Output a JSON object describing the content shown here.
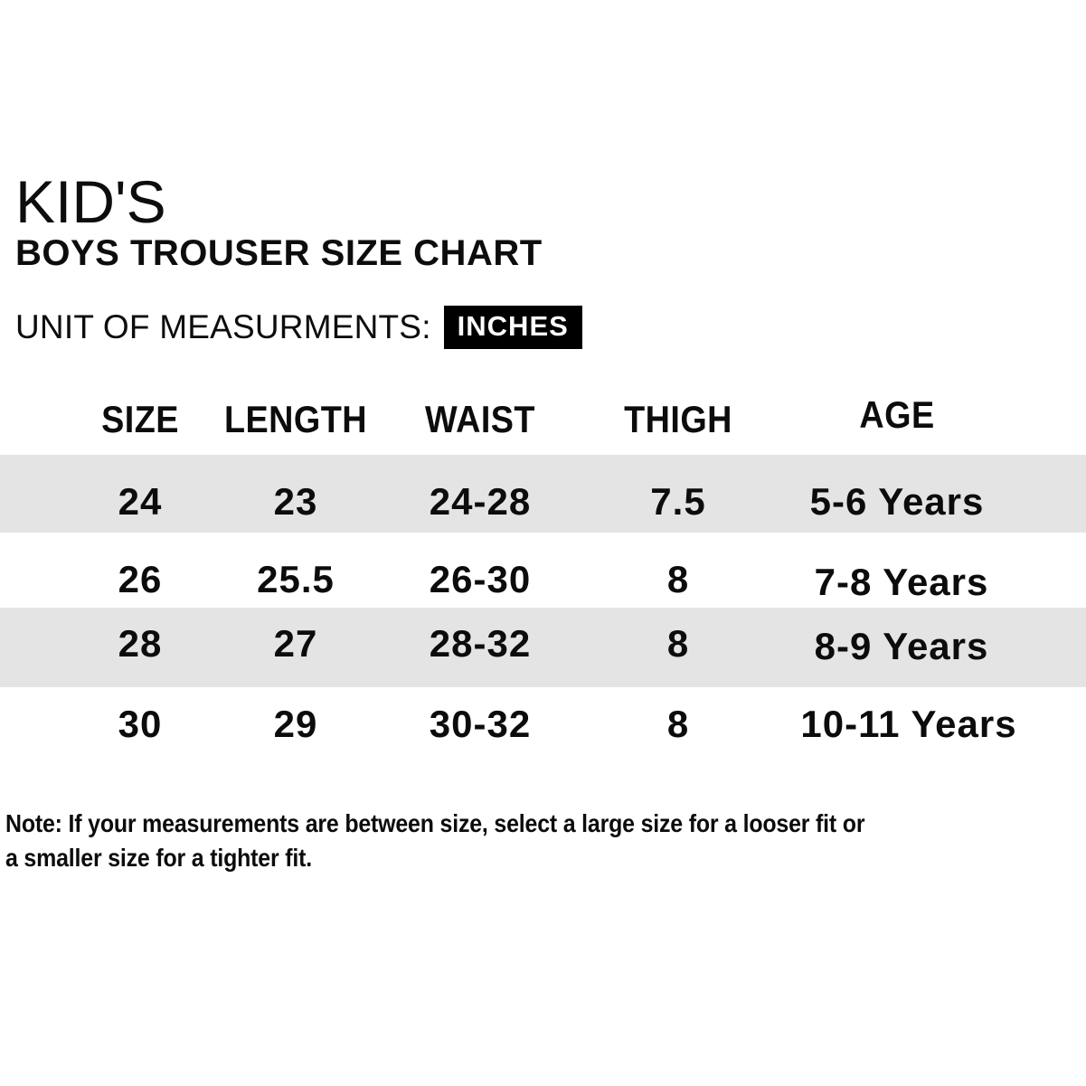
{
  "header": {
    "title_top": "KID'S",
    "title_main": "BOYS TROUSER SIZE CHART",
    "unit_label": "UNIT OF MEASURMENTS:",
    "unit_value": "INCHES"
  },
  "table": {
    "columns": [
      "SIZE",
      "LENGTH",
      "WAIST",
      "THIGH",
      "AGE"
    ],
    "rows": [
      [
        "24",
        "23",
        "24-28",
        "7.5",
        "5-6 Years"
      ],
      [
        "26",
        "25.5",
        "26-30",
        "8",
        "7-8 Years"
      ],
      [
        "28",
        "27",
        "28-32",
        "8",
        "8-9 Years"
      ],
      [
        "30",
        "29",
        "30-32",
        "8",
        "10-11 Years"
      ]
    ]
  },
  "note": {
    "line1": "Note: If your measurements are between size, select a large size for a looser fit or",
    "line2": "a smaller size for a tighter fit."
  },
  "colors": {
    "row_stripe": "#e4e4e4",
    "badge_bg": "#000000",
    "badge_text": "#ffffff",
    "text": "#0c0c0c",
    "background": "#ffffff"
  }
}
